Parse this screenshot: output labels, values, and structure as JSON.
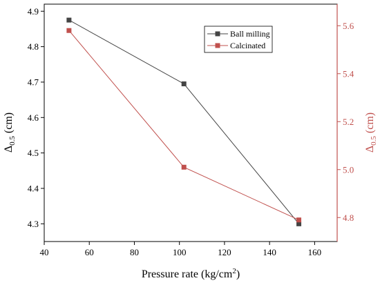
{
  "chart_data": {
    "type": "line",
    "xlabel": "Pressure rate (kg/cm",
    "xlabel_sup": "2",
    "xlabel_tail": ")",
    "ylabel_left": {
      "main": "Δ",
      "sub": "0.5",
      "tail": " (cm)"
    },
    "ylabel_right": {
      "main": "Δ",
      "sub": "0.5",
      "tail": " (cm)"
    },
    "xlim": [
      40,
      170
    ],
    "ylim_left": [
      4.25,
      4.92
    ],
    "ylim_right": [
      4.7,
      5.69
    ],
    "x_ticks": [
      40,
      60,
      80,
      100,
      120,
      140,
      160
    ],
    "x_tick_labels": [
      "40",
      "60",
      "80",
      "100",
      "120",
      "140",
      "160"
    ],
    "y_left_ticks": [
      4.3,
      4.4,
      4.5,
      4.6,
      4.7,
      4.8,
      4.9
    ],
    "y_left_tick_labels": [
      "4.3",
      "4.4",
      "4.5",
      "4.6",
      "4.7",
      "4.8",
      "4.9"
    ],
    "y_right_ticks": [
      4.8,
      5.0,
      5.2,
      5.4,
      5.6
    ],
    "y_right_tick_labels": [
      "4.8",
      "5.0",
      "5.2",
      "5.4",
      "5.6"
    ],
    "grid": false,
    "legend_position": "top-right",
    "series": [
      {
        "name": "Ball milling",
        "axis": "left",
        "color": "#444444",
        "x": [
          51,
          102,
          153
        ],
        "y": [
          4.875,
          4.695,
          4.3
        ]
      },
      {
        "name": "Calcinated",
        "axis": "right",
        "color": "#c0504d",
        "x": [
          51,
          102,
          153
        ],
        "y": [
          5.58,
          5.01,
          4.79
        ]
      }
    ],
    "colors": {
      "axis_left": "#000000",
      "axis_right": "#c0504d"
    }
  }
}
